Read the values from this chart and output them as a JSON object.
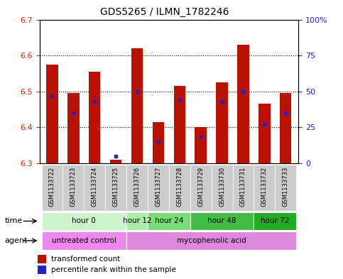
{
  "title": "GDS5265 / ILMN_1782246",
  "samples": [
    "GSM1133722",
    "GSM1133723",
    "GSM1133724",
    "GSM1133725",
    "GSM1133726",
    "GSM1133727",
    "GSM1133728",
    "GSM1133729",
    "GSM1133730",
    "GSM1133731",
    "GSM1133732",
    "GSM1133733"
  ],
  "transformed_count": [
    6.575,
    6.495,
    6.555,
    6.31,
    6.62,
    6.415,
    6.515,
    6.4,
    6.525,
    6.63,
    6.465,
    6.495
  ],
  "percentile_rank": [
    47,
    35,
    43,
    5,
    50,
    15,
    44,
    18,
    43,
    50,
    27,
    35
  ],
  "ylim_left": [
    6.3,
    6.7
  ],
  "ylim_right": [
    0,
    100
  ],
  "yticks_left": [
    6.3,
    6.4,
    6.5,
    6.6,
    6.7
  ],
  "yticks_right": [
    0,
    25,
    50,
    75,
    100
  ],
  "ytick_labels_right": [
    "0",
    "25",
    "50",
    "75",
    "100%"
  ],
  "bar_color": "#bb1100",
  "dot_color": "#2222cc",
  "bar_bottom": 6.3,
  "time_groups": [
    {
      "label": "hour 0",
      "indices": [
        0,
        1,
        2,
        3
      ],
      "color": "#ccf5cc"
    },
    {
      "label": "hour 12",
      "indices": [
        4
      ],
      "color": "#aaeaaa"
    },
    {
      "label": "hour 24",
      "indices": [
        5,
        6
      ],
      "color": "#77dd77"
    },
    {
      "label": "hour 48",
      "indices": [
        7,
        8,
        9
      ],
      "color": "#44bb44"
    },
    {
      "label": "hour 72",
      "indices": [
        10,
        11
      ],
      "color": "#22aa22"
    }
  ],
  "agent_groups": [
    {
      "label": "untreated control",
      "indices": [
        0,
        1,
        2,
        3
      ],
      "color": "#ee88ee"
    },
    {
      "label": "mycophenolic acid",
      "indices": [
        4,
        5,
        6,
        7,
        8,
        9,
        10,
        11
      ],
      "color": "#dd88dd"
    }
  ],
  "time_group_colors": [
    "#ccf5cc",
    "#aaeaaa",
    "#77dd77",
    "#44bb44",
    "#22aa22"
  ],
  "agent_group_colors": [
    "#ee88ee",
    "#dd88dd"
  ],
  "xlabel_color": "#cc2200",
  "ylabel_right_color": "#2222cc",
  "sample_box_color": "#cccccc",
  "legend_bar_color": "#bb1100",
  "legend_dot_color": "#2222cc"
}
